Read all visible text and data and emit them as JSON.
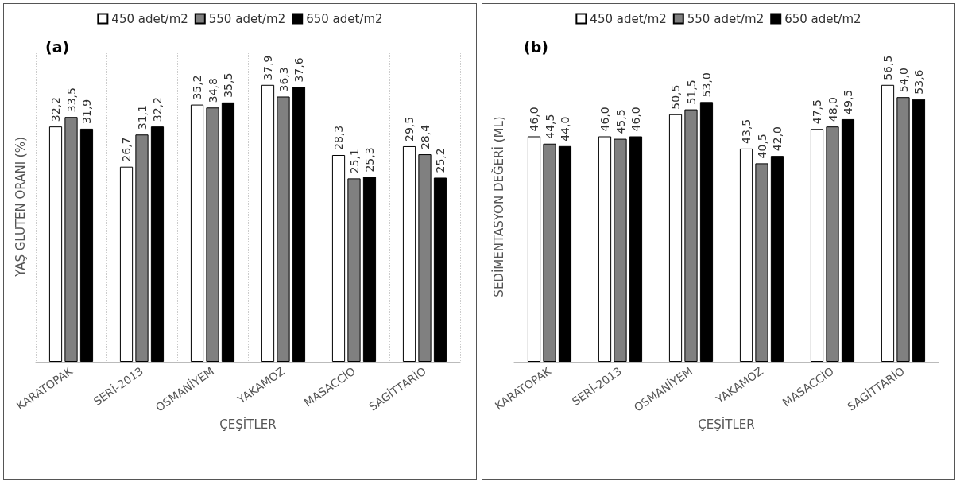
{
  "chart_data": [
    {
      "type": "bar",
      "xlabel": "ÇEŞİTLER",
      "ylabel": "YAŞ GLUTEN ORANI (%)",
      "annotations": [
        "(a)"
      ],
      "categories": [
        "KARATOPAK",
        "SERİ-2013",
        "OSMANİYEM",
        "YAKAMOZ",
        "MASACCİO",
        "SAGİTTARİO"
      ],
      "series": [
        {
          "name": "450 adet/m2",
          "color": "#ffffff",
          "values": [
            32.2,
            26.7,
            35.2,
            37.9,
            28.3,
            29.5
          ],
          "value_labels": [
            "32,2",
            "26,7",
            "35,2",
            "37,9",
            "28,3",
            "29,5"
          ]
        },
        {
          "name": "550 adet/m2",
          "color": "#808080",
          "values": [
            33.5,
            31.1,
            34.8,
            36.3,
            25.1,
            28.4
          ],
          "value_labels": [
            "33,5",
            "31,1",
            "34,8",
            "36,3",
            "25,1",
            "28,4"
          ]
        },
        {
          "name": "650 adet/m2",
          "color": "#000000",
          "values": [
            31.9,
            32.2,
            35.5,
            37.6,
            25.3,
            25.2
          ],
          "value_labels": [
            "31,9",
            "32,2",
            "35,5",
            "37,6",
            "25,3",
            "25,2"
          ]
        }
      ],
      "grid": "x",
      "legend": "top"
    },
    {
      "type": "bar",
      "xlabel": "ÇEŞİTLER",
      "ylabel": "SEDİMENTASYON DEĞERİ (ML)",
      "annotations": [
        "(b)"
      ],
      "categories": [
        "KARATOPAK",
        "SERİ-2013",
        "OSMANİYEM",
        "YAKAMOZ",
        "MASACCİO",
        "SAGİTTARİO"
      ],
      "series": [
        {
          "name": "450 adet/m2",
          "color": "#ffffff",
          "values": [
            46.0,
            46.0,
            50.5,
            43.5,
            47.5,
            56.5
          ],
          "value_labels": [
            "46,0",
            "46,0",
            "50,5",
            "43,5",
            "47,5",
            "56,5"
          ]
        },
        {
          "name": "550 adet/m2",
          "color": "#808080",
          "values": [
            44.5,
            45.5,
            51.5,
            40.5,
            48.0,
            54.0
          ],
          "value_labels": [
            "44,5",
            "45,5",
            "51,5",
            "40,5",
            "48,0",
            "54,0"
          ]
        },
        {
          "name": "650 adet/m2",
          "color": "#000000",
          "values": [
            44.0,
            46.0,
            53.0,
            42.0,
            49.5,
            53.6
          ],
          "value_labels": [
            "44,0",
            "46,0",
            "53,0",
            "42,0",
            "49,5",
            "53,6"
          ]
        }
      ],
      "legend": "top"
    }
  ]
}
